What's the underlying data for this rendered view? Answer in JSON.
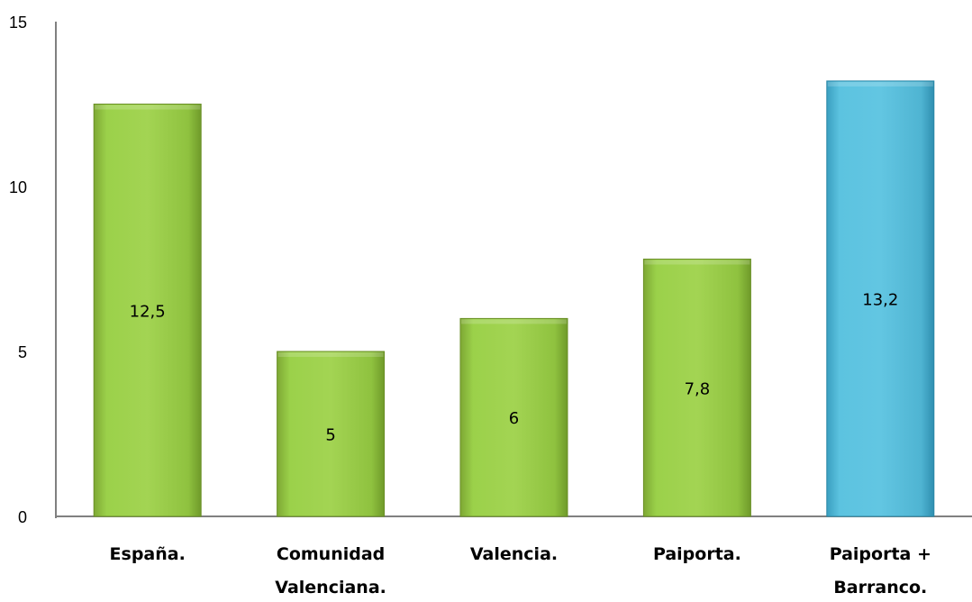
{
  "chart_data": {
    "type": "bar",
    "title": "",
    "xlabel": "",
    "ylabel": "",
    "ylim": [
      0,
      15
    ],
    "yticks": [
      0,
      5,
      10,
      15
    ],
    "grid": false,
    "legend": "none",
    "categories": [
      [
        "España."
      ],
      [
        "Comunidad",
        "Valenciana."
      ],
      [
        "Valencia."
      ],
      [
        "Paiporta."
      ],
      [
        "Paiporta +",
        "Barranco."
      ]
    ],
    "values": [
      12.5,
      5,
      6,
      7.8,
      13.2
    ],
    "data_labels": [
      "12,5",
      "5",
      "6",
      "7,8",
      "13,2"
    ],
    "colors": {
      "bar": "#92c540",
      "bar_highlight": "#4bb3d3",
      "bar_edge": "#6a8f26",
      "bar_highlight_edge": "#2a87a6"
    },
    "bar_colors": [
      "bar",
      "bar",
      "bar",
      "bar",
      "bar_highlight"
    ]
  }
}
